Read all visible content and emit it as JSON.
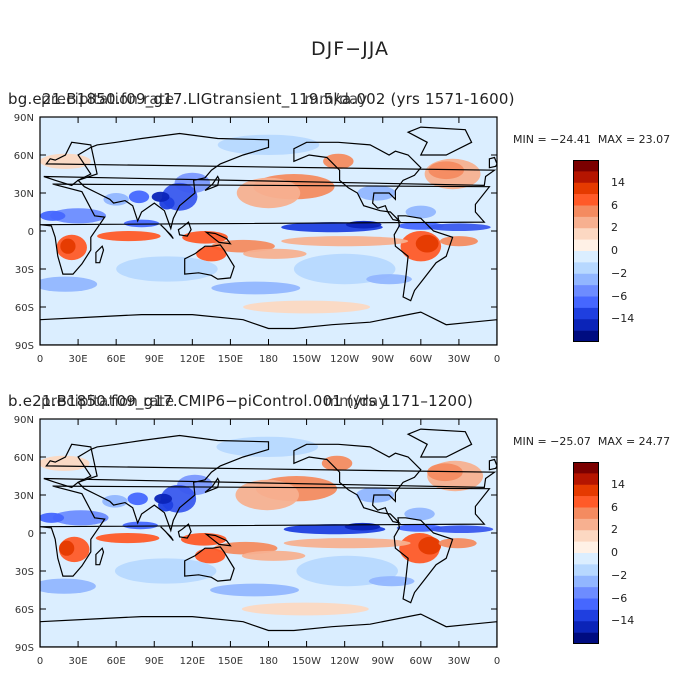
{
  "title": "DJF−JJA",
  "panels": [
    {
      "title_base": "bg.e21.B1850.f09_g17.LIGtransient_119.5ka.002 (yrs 1571-1600)",
      "title_overlay": "precipitation rate",
      "units": "mm/day",
      "min_label": "MIN = −24.41",
      "max_label": "MAX =  23.07"
    },
    {
      "title_base": "b.e21.B1850.f09_g17.CMIP6−piControl.001 (yrs 1171–1200)",
      "title_overlay": "precipitation rate",
      "units": "mm/day",
      "min_label": "MIN = −25.07",
      "max_label": "MAX =  24.77"
    }
  ],
  "lat_ticks": [
    "90N",
    "60N",
    "30N",
    "0",
    "30S",
    "60S",
    "90S"
  ],
  "lon_ticks": [
    "0",
    "30E",
    "60E",
    "90E",
    "120E",
    "150E",
    "180",
    "150W",
    "120W",
    "90W",
    "60W",
    "30W",
    "0"
  ],
  "colorbar": {
    "labels": [
      "14",
      "6",
      "2",
      "0",
      "−2",
      "−6",
      "−14"
    ],
    "colors": [
      "#7b0000",
      "#b51500",
      "#e53a00",
      "#ff5a28",
      "#f48b60",
      "#f7b090",
      "#fcd8c2",
      "#fff1e6",
      "#dbeeff",
      "#b7d8ff",
      "#92b6ff",
      "#6d8cff",
      "#4667ff",
      "#1f3fe0",
      "#0b24b8",
      "#000c80"
    ]
  }
}
